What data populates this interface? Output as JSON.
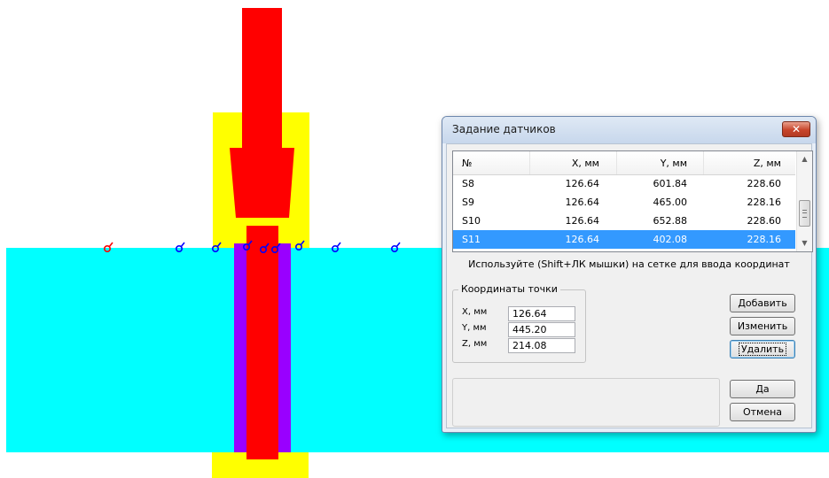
{
  "dialog": {
    "title": "Задание датчиков",
    "close_label": "✕",
    "table": {
      "columns": [
        "№",
        "X, мм",
        "Y, мм",
        "Z, мм"
      ],
      "rows": [
        [
          "S8",
          "126.64",
          "601.84",
          "228.60"
        ],
        [
          "S9",
          "126.64",
          "465.00",
          "228.16"
        ],
        [
          "S10",
          "126.64",
          "652.88",
          "228.60"
        ],
        [
          "S11",
          "126.64",
          "402.08",
          "228.16"
        ]
      ],
      "selected_row": 3,
      "scroll_icons": [
        "scroll-up-arrow-icon",
        "scroll-down-arrow-icon"
      ]
    },
    "hint": "Используйте (Shift+ЛК мышки) на сетке для ввода координат",
    "coords": {
      "legend": "Координаты точки",
      "x_label": "X, мм",
      "x_value": "126.64",
      "y_label": "Y, мм",
      "y_value": "445.20",
      "z_label": "Z, мм",
      "z_value": "214.08"
    },
    "buttons": {
      "add": "Добавить",
      "edit": "Изменить",
      "delete": "Удалить",
      "ok": "Да",
      "cancel": "Отмена"
    }
  },
  "scene": {
    "colors": {
      "fluid": "#00ffff",
      "core": "#ff0000",
      "housing": "#ffff00",
      "sleeve": "#9900ff",
      "sensor_selected": "#ff0000",
      "sensor": "#0000ff"
    },
    "sensor_icon": "sensor-marker-icon"
  }
}
